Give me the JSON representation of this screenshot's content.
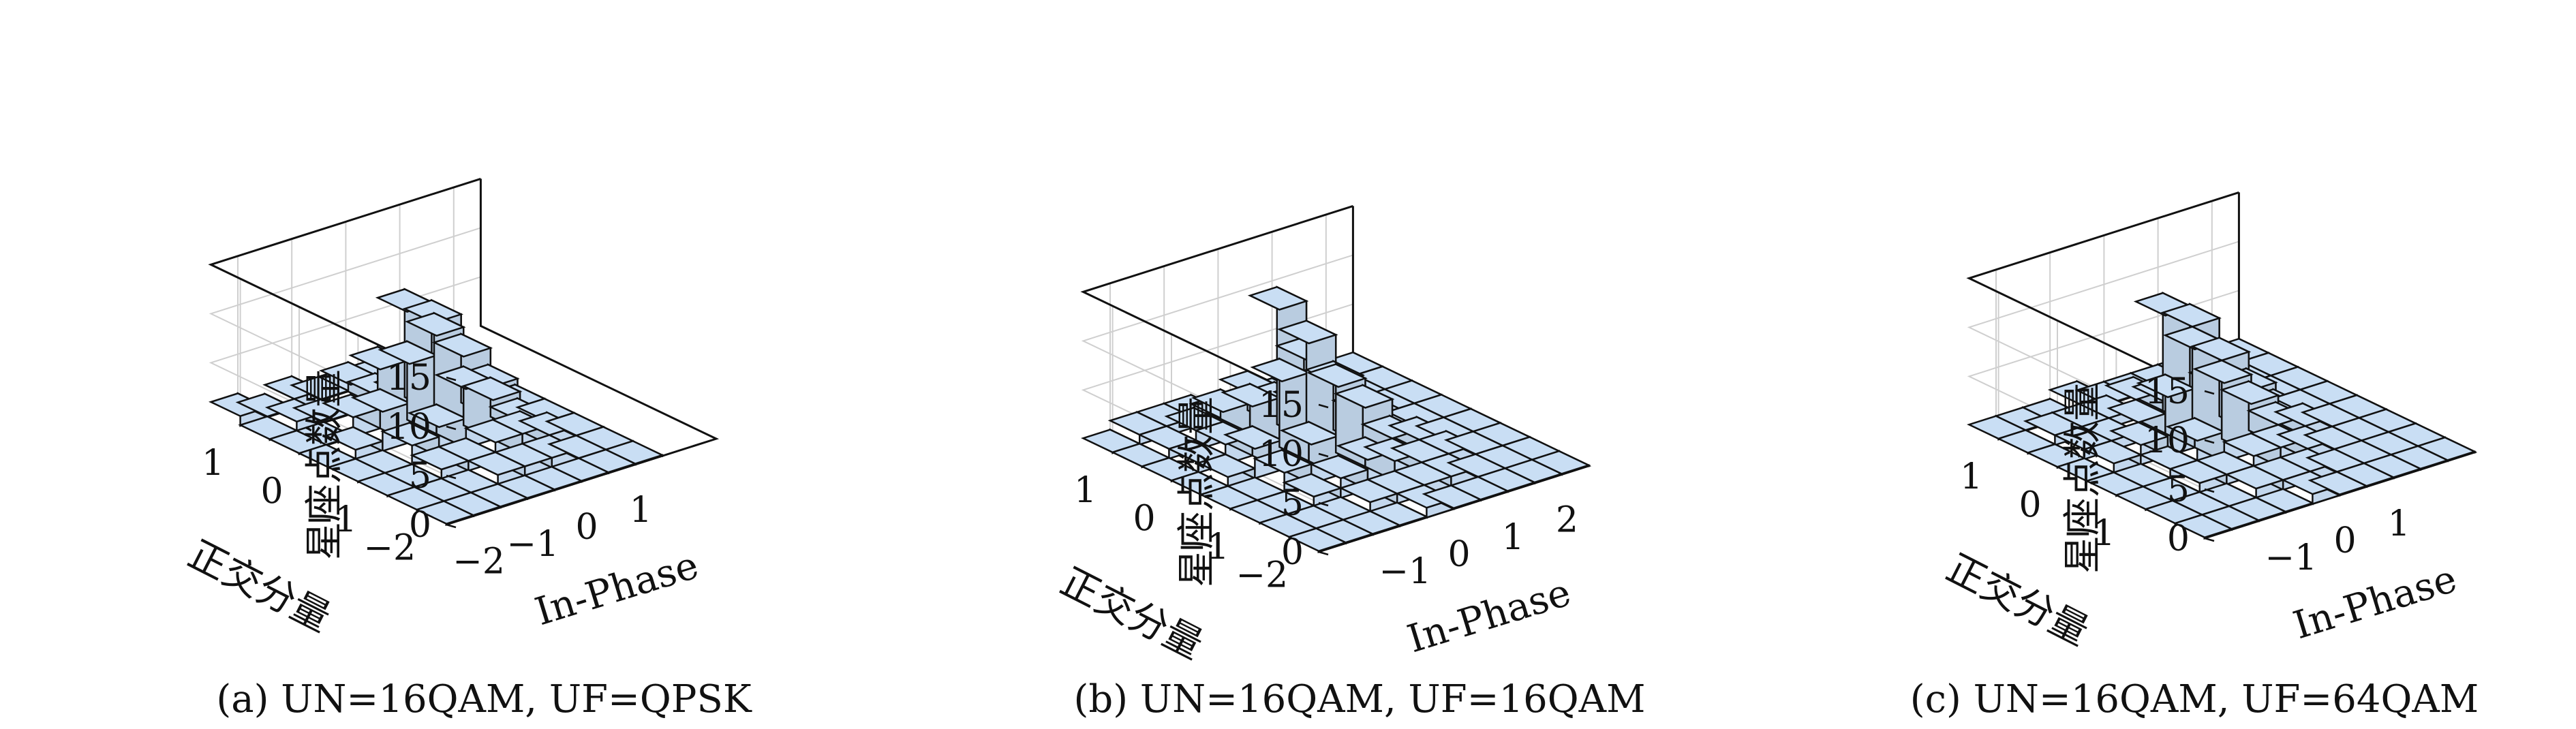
{
  "bar_color": "#c9def4",
  "edge_color": "#111111",
  "grid_color": "#cfcfcf",
  "chart_data": [
    {
      "type": "bar3d",
      "caption": "(a) UN=16QAM, UF=QPSK",
      "zlabel": "星座点数量",
      "ylabel": "正交分量",
      "xlabel": "In-Phase",
      "zlim": [
        0,
        15
      ],
      "zticks": [
        "0",
        "5",
        "10",
        "15"
      ],
      "xticks": [
        "−2",
        "−1",
        "0",
        "1"
      ],
      "yticks": [
        "1",
        "0",
        "−1",
        "−2"
      ],
      "x_centers": [
        -2.25,
        -1.75,
        -1.25,
        -0.75,
        -0.25,
        0.25,
        0.75,
        1.25
      ],
      "y_centers": [
        1.25,
        0.75,
        0.25,
        -0.25,
        -0.75,
        -1.25,
        -1.75,
        -2.25
      ],
      "heights": [
        [
          1,
          0,
          1,
          0,
          0,
          0,
          0,
          0
        ],
        [
          0,
          1,
          0,
          3,
          1,
          0,
          1,
          0
        ],
        [
          0,
          0,
          2,
          6,
          11,
          9,
          2,
          0
        ],
        [
          0,
          1,
          4,
          8,
          10,
          7,
          3,
          0
        ],
        [
          0,
          0,
          2,
          3,
          6,
          4,
          1,
          0
        ],
        [
          0,
          0,
          1,
          1,
          2,
          2,
          1,
          0
        ],
        [
          0,
          0,
          0,
          1,
          1,
          1,
          0,
          0
        ],
        [
          0,
          0,
          0,
          0,
          0,
          0,
          0,
          0
        ]
      ]
    },
    {
      "type": "bar3d",
      "caption": "(b) UN=16QAM, UF=16QAM",
      "zlabel": "星座点数量",
      "ylabel": "正交分量",
      "xlabel": "In-Phase",
      "zlim": [
        0,
        15
      ],
      "zticks": [
        "0",
        "5",
        "10",
        "15"
      ],
      "xticks": [
        "−1",
        "0",
        "1",
        "2"
      ],
      "yticks": [
        "1",
        "0",
        "−1",
        "−2"
      ],
      "x_centers": [
        -2.25,
        -1.75,
        -1.25,
        -0.75,
        -0.25,
        0.25,
        0.75,
        1.25,
        1.75,
        2.25
      ],
      "y_centers": [
        1.25,
        0.75,
        0.25,
        -0.25,
        -0.75,
        -1.25,
        -1.75,
        -2.25
      ],
      "heights": [
        [
          0,
          1,
          1,
          1,
          0,
          0,
          0,
          0,
          0,
          0
        ],
        [
          0,
          1,
          2,
          3,
          4,
          2,
          1,
          0,
          0,
          0
        ],
        [
          0,
          1,
          2,
          5,
          14,
          8,
          4,
          1,
          0,
          0
        ],
        [
          0,
          1,
          3,
          9,
          12,
          7,
          3,
          1,
          0,
          0
        ],
        [
          0,
          0,
          2,
          4,
          9,
          6,
          2,
          1,
          0,
          0
        ],
        [
          0,
          0,
          1,
          2,
          3,
          2,
          1,
          1,
          0,
          0
        ],
        [
          0,
          0,
          0,
          1,
          1,
          1,
          1,
          0,
          0,
          0
        ],
        [
          0,
          0,
          0,
          0,
          1,
          0,
          0,
          0,
          0,
          0
        ]
      ]
    },
    {
      "type": "bar3d",
      "caption": "(c) UN=16QAM, UF=64QAM",
      "zlabel": "星座点数量",
      "ylabel": "正交分量",
      "xlabel": "In-Phase",
      "zlim": [
        0,
        15
      ],
      "zticks": [
        "0",
        "5",
        "10",
        "15"
      ],
      "xticks": [
        "−1",
        "0",
        "1"
      ],
      "yticks": [
        "1",
        "0",
        "−1"
      ],
      "x_centers": [
        -2.25,
        -1.75,
        -1.25,
        -0.75,
        -0.25,
        0.25,
        0.75,
        1.25,
        1.75,
        2.25
      ],
      "y_centers": [
        1.25,
        0.75,
        0.25,
        -0.25,
        -0.75,
        -1.25,
        -1.75,
        -2.25
      ],
      "heights": [
        [
          0,
          0,
          0,
          1,
          0,
          0,
          0,
          0,
          0,
          0
        ],
        [
          0,
          1,
          1,
          1,
          2,
          1,
          1,
          0,
          0,
          0
        ],
        [
          0,
          1,
          1,
          2,
          12,
          10,
          3,
          1,
          0,
          0
        ],
        [
          0,
          1,
          2,
          6,
          10,
          8,
          4,
          1,
          0,
          0
        ],
        [
          0,
          0,
          1,
          3,
          8,
          5,
          2,
          1,
          0,
          0
        ],
        [
          0,
          0,
          1,
          1,
          2,
          2,
          1,
          0,
          0,
          0
        ],
        [
          0,
          0,
          0,
          1,
          1,
          1,
          0,
          0,
          0,
          0
        ],
        [
          0,
          0,
          0,
          0,
          1,
          0,
          0,
          0,
          0,
          0
        ]
      ]
    }
  ]
}
